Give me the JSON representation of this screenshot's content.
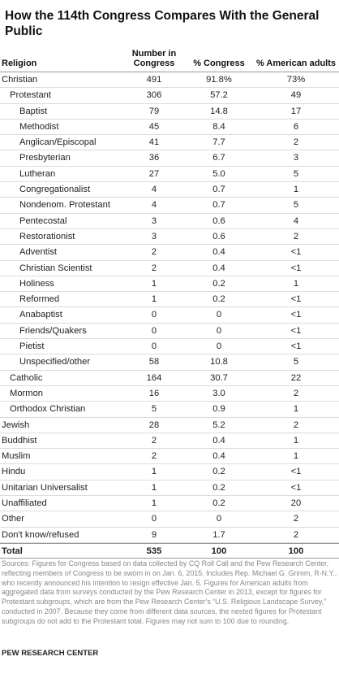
{
  "chart_data": {
    "type": "table",
    "title": "How the 114th Congress Compares With the General Public",
    "columns": [
      "Religion",
      "Number in Congress",
      "% Congress",
      "% American adults"
    ],
    "rows": [
      {
        "label": "Christian",
        "level": 0,
        "number": "491",
        "pct_congress": "91.8%",
        "pct_adults": "73%"
      },
      {
        "label": "Protestant",
        "level": 1,
        "number": "306",
        "pct_congress": "57.2",
        "pct_adults": "49"
      },
      {
        "label": "Baptist",
        "level": 2,
        "number": "79",
        "pct_congress": "14.8",
        "pct_adults": "17"
      },
      {
        "label": "Methodist",
        "level": 2,
        "number": "45",
        "pct_congress": "8.4",
        "pct_adults": "6"
      },
      {
        "label": "Anglican/Episcopal",
        "level": 2,
        "number": "41",
        "pct_congress": "7.7",
        "pct_adults": "2"
      },
      {
        "label": "Presbyterian",
        "level": 2,
        "number": "36",
        "pct_congress": "6.7",
        "pct_adults": "3"
      },
      {
        "label": "Lutheran",
        "level": 2,
        "number": "27",
        "pct_congress": "5.0",
        "pct_adults": "5"
      },
      {
        "label": "Congregationalist",
        "level": 2,
        "number": "4",
        "pct_congress": "0.7",
        "pct_adults": "1"
      },
      {
        "label": "Nondenom. Protestant",
        "level": 2,
        "number": "4",
        "pct_congress": "0.7",
        "pct_adults": "5"
      },
      {
        "label": "Pentecostal",
        "level": 2,
        "number": "3",
        "pct_congress": "0.6",
        "pct_adults": "4"
      },
      {
        "label": "Restorationist",
        "level": 2,
        "number": "3",
        "pct_congress": "0.6",
        "pct_adults": "2"
      },
      {
        "label": "Adventist",
        "level": 2,
        "number": "2",
        "pct_congress": "0.4",
        "pct_adults": "<1"
      },
      {
        "label": "Christian Scientist",
        "level": 2,
        "number": "2",
        "pct_congress": "0.4",
        "pct_adults": "<1"
      },
      {
        "label": "Holiness",
        "level": 2,
        "number": "1",
        "pct_congress": "0.2",
        "pct_adults": "1"
      },
      {
        "label": "Reformed",
        "level": 2,
        "number": "1",
        "pct_congress": "0.2",
        "pct_adults": "<1"
      },
      {
        "label": "Anabaptist",
        "level": 2,
        "number": "0",
        "pct_congress": "0",
        "pct_adults": "<1"
      },
      {
        "label": "Friends/Quakers",
        "level": 2,
        "number": "0",
        "pct_congress": "0",
        "pct_adults": "<1"
      },
      {
        "label": "Pietist",
        "level": 2,
        "number": "0",
        "pct_congress": "0",
        "pct_adults": "<1"
      },
      {
        "label": "Unspecified/other",
        "level": 2,
        "number": "58",
        "pct_congress": "10.8",
        "pct_adults": "5"
      },
      {
        "label": "Catholic",
        "level": 1,
        "number": "164",
        "pct_congress": "30.7",
        "pct_adults": "22"
      },
      {
        "label": "Mormon",
        "level": 1,
        "number": "16",
        "pct_congress": "3.0",
        "pct_adults": "2"
      },
      {
        "label": "Orthodox Christian",
        "level": 1,
        "number": "5",
        "pct_congress": "0.9",
        "pct_adults": "1"
      },
      {
        "label": "Jewish",
        "level": 0,
        "number": "28",
        "pct_congress": "5.2",
        "pct_adults": "2"
      },
      {
        "label": "Buddhist",
        "level": 0,
        "number": "2",
        "pct_congress": "0.4",
        "pct_adults": "1"
      },
      {
        "label": "Muslim",
        "level": 0,
        "number": "2",
        "pct_congress": "0.4",
        "pct_adults": "1"
      },
      {
        "label": "Hindu",
        "level": 0,
        "number": "1",
        "pct_congress": "0.2",
        "pct_adults": "<1"
      },
      {
        "label": "Unitarian Universalist",
        "level": 0,
        "number": "1",
        "pct_congress": "0.2",
        "pct_adults": "<1"
      },
      {
        "label": "Unaffiliated",
        "level": 0,
        "number": "1",
        "pct_congress": "0.2",
        "pct_adults": "20"
      },
      {
        "label": "Other",
        "level": 0,
        "number": "0",
        "pct_congress": "0",
        "pct_adults": "2"
      },
      {
        "label": "Don't know/refused",
        "level": 0,
        "number": "9",
        "pct_congress": "1.7",
        "pct_adults": "2"
      }
    ],
    "total": {
      "label": "Total",
      "number": "535",
      "pct_congress": "100",
      "pct_adults": "100"
    }
  },
  "notes": "Sources: Figures for Congress based on data collected by CQ Roll Call and the Pew Research Center, reflecting members of Congress to be sworn in on Jan. 6, 2015. Includes Rep. Michael G. Grimm, R-N.Y., who recently announced his intention to resign effective Jan. 5. Figures for American adults from aggregated data from surveys conducted by the Pew Research Center in 2013, except for figures for Protestant subgroups, which are from the Pew Research Center's “U.S. Religious Landscape Survey,” conducted in 2007. Because they come from different data sources, the nested figures for Protestant subgroups do not add to the Protestant total. Figures may not sum to 100 due to rounding.",
  "source": "PEW RESEARCH CENTER"
}
